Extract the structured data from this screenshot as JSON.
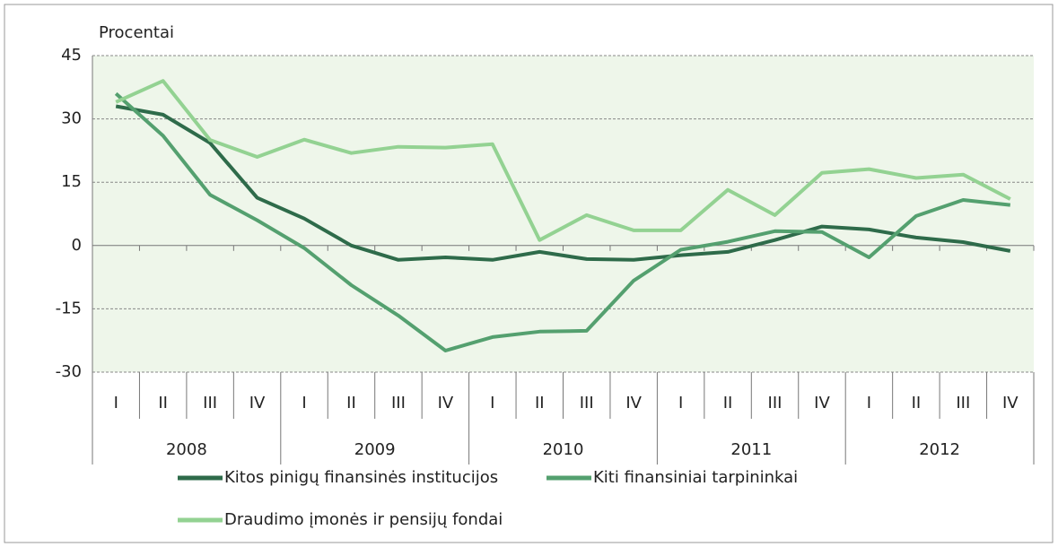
{
  "chart_data": {
    "type": "line",
    "y_axis_label": "Procentai",
    "categories": [
      "I",
      "II",
      "III",
      "IV",
      "I",
      "II",
      "III",
      "IV",
      "I",
      "II",
      "III",
      "IV",
      "I",
      "II",
      "III",
      "IV",
      "I",
      "II",
      "III",
      "IV"
    ],
    "years": [
      "2008",
      "2009",
      "2010",
      "2011",
      "2012"
    ],
    "series": [
      {
        "name": "Kitos pinigų finansinės institucijos",
        "color": "#2e6b4a",
        "values": [
          33,
          31,
          24.3,
          11.3,
          6.4,
          0,
          -3.4,
          -2.8,
          -3.4,
          -1.5,
          -3.2,
          -3.4,
          -2.3,
          -1.5,
          1.3,
          4.5,
          3.8,
          1.9,
          0.8,
          -1.3
        ]
      },
      {
        "name": "Kiti finansiniai tarpininkai",
        "color": "#54a06f",
        "values": [
          36,
          26,
          12,
          6,
          -0.6,
          -9.4,
          -16.6,
          -24.9,
          -21.7,
          -20.4,
          -20.2,
          -8.3,
          -1,
          0.9,
          3.4,
          3.2,
          -2.8,
          7,
          10.8,
          9.6
        ]
      },
      {
        "name": "Draudimo įmonės ir pensijų fondai",
        "color": "#93d292",
        "values": [
          34,
          39,
          25,
          21,
          25.1,
          21.9,
          23.4,
          23.2,
          24,
          1.3,
          7.2,
          3.6,
          3.6,
          13.2,
          7.2,
          17.2,
          18.1,
          16,
          16.8,
          11
        ]
      }
    ],
    "ylim": [
      -30,
      45
    ],
    "yticks": [
      -30,
      -15,
      0,
      15,
      30,
      45
    ],
    "grid": true
  }
}
